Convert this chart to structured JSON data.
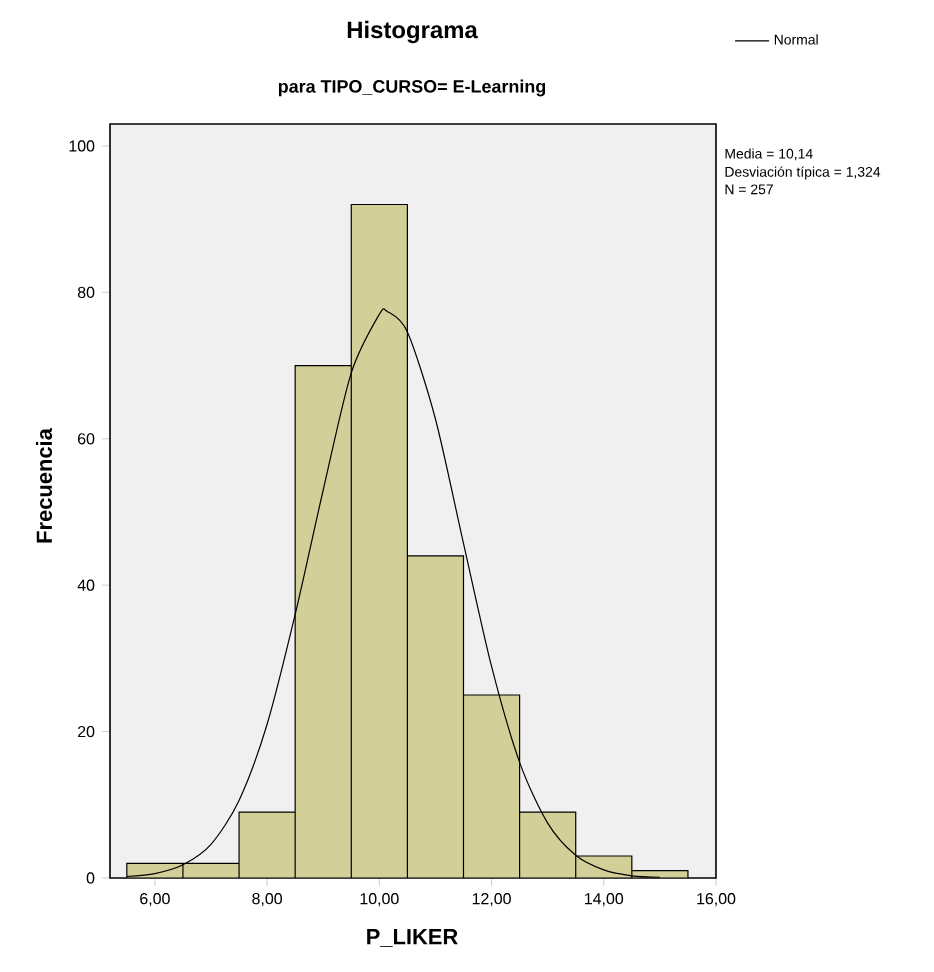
{
  "chart_data": {
    "type": "histogram",
    "title": "Histograma",
    "subtitle": "para TIPO_CURSO= E-Learning",
    "xlabel": "P_LIKER",
    "ylabel": "Frecuencia",
    "bins": [
      5.5,
      6.5,
      7.5,
      8.5,
      9.5,
      10.5,
      11.5,
      12.5,
      13.5,
      14.5,
      15.5
    ],
    "values": [
      2,
      2,
      9,
      70,
      92,
      44,
      25,
      9,
      3,
      1
    ],
    "color": "#d3cf98",
    "series": [
      {
        "type": "line",
        "name": "Normal",
        "color": "#000000",
        "x": [
          5.5,
          6,
          6.5,
          7,
          7.5,
          8,
          8.5,
          9,
          9.5,
          10,
          10.14,
          10.5,
          11,
          11.5,
          12,
          12.5,
          13,
          13.5,
          14,
          14.5,
          15
        ],
        "values": [
          0.2,
          0.6,
          1.8,
          4.6,
          10.6,
          21,
          36,
          53,
          69,
          77,
          77.4,
          74.6,
          62.7,
          45.7,
          28.9,
          15.8,
          7.5,
          3.1,
          1.1,
          0.3,
          0.1
        ]
      }
    ],
    "xlim": [
      5.2,
      16
    ],
    "ylim": [
      0,
      103
    ],
    "xticks": [
      {
        "value": 6,
        "label": "6,00"
      },
      {
        "value": 8,
        "label": "8,00"
      },
      {
        "value": 10,
        "label": "10,00"
      },
      {
        "value": 12,
        "label": "12,00"
      },
      {
        "value": 14,
        "label": "14,00"
      },
      {
        "value": 16,
        "label": "16,00"
      }
    ],
    "yticks": [
      0,
      20,
      40,
      60,
      80,
      100
    ],
    "legend": "top right",
    "annotations": [
      "Media = 10,14",
      "Desviación típica = 1,324",
      "N = 257"
    ]
  }
}
